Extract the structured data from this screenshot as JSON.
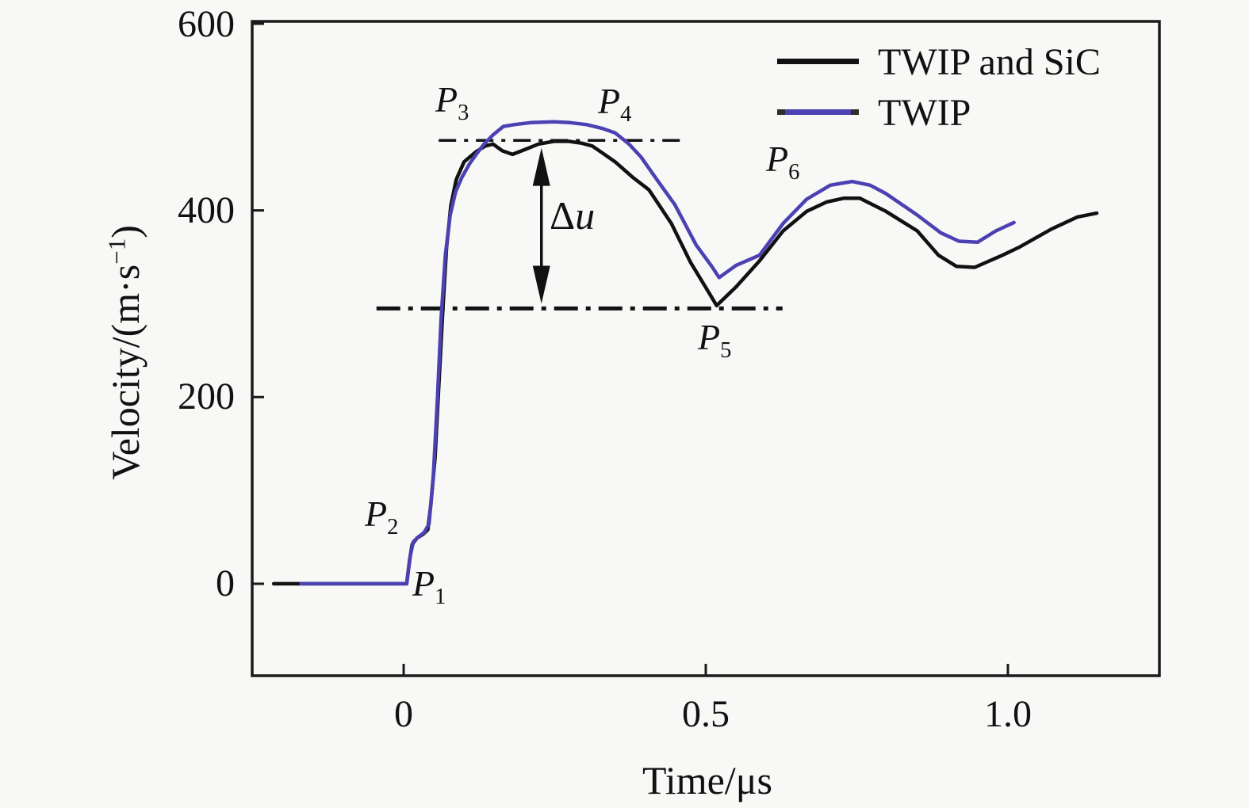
{
  "figure": {
    "background": "#f8f8f7",
    "axis_color": "#1a1a1a"
  },
  "axes": {
    "x": {
      "title": "Time/μs",
      "tick_labels": [
        "0",
        "0.5",
        "1.0"
      ]
    },
    "y": {
      "title_pre": "Velocity/(m·s",
      "title_sup": "−1",
      "title_post": ")",
      "tick_labels": [
        "600",
        "400",
        "200",
        "0"
      ]
    }
  },
  "legend": {
    "items": [
      {
        "label": "TWIP and SiC",
        "color": "#111111"
      },
      {
        "label": "TWIP",
        "color": "#4c41b3"
      }
    ]
  },
  "annotations": {
    "point_labels": [
      {
        "main": "P",
        "sub": "1"
      },
      {
        "main": "P",
        "sub": "2"
      },
      {
        "main": "P",
        "sub": "3"
      },
      {
        "main": "P",
        "sub": "4"
      },
      {
        "main": "P",
        "sub": "5"
      },
      {
        "main": "P",
        "sub": "6"
      }
    ],
    "delta": {
      "symbol": "Δ",
      "var": "u"
    },
    "reference_lines": [
      {
        "level": 475,
        "t_start": 0.058,
        "t_end": 0.463,
        "style": "dash-dot",
        "weight": "thin"
      },
      {
        "level": 295,
        "t_start": -0.045,
        "t_end": 0.627,
        "style": "dash-dot",
        "weight": "thick"
      }
    ],
    "arrow": {
      "t": 0.228,
      "v_from": 300,
      "v_to": 467
    }
  },
  "chart_data": {
    "type": "line",
    "title": "",
    "xlabel": "Time/μs",
    "ylabel": "Velocity/(m·s−1)",
    "xlim": [
      -0.2507,
      1.2507
    ],
    "ylim": [
      -98.5,
      602.5
    ],
    "x_ticks": [
      0,
      0.5,
      1.0
    ],
    "y_ticks": [
      0,
      200,
      400,
      600
    ],
    "grid": false,
    "legend_position": "upper right",
    "series": [
      {
        "name": "TWIP and SiC",
        "color": "#111111",
        "points": [
          [
            -0.215,
            0
          ],
          [
            -0.1,
            0
          ],
          [
            0.005,
            0
          ],
          [
            0.01,
            26
          ],
          [
            0.014,
            42
          ],
          [
            0.022,
            49
          ],
          [
            0.032,
            53
          ],
          [
            0.04,
            58
          ],
          [
            0.045,
            85
          ],
          [
            0.052,
            135
          ],
          [
            0.058,
            210
          ],
          [
            0.065,
            295
          ],
          [
            0.071,
            360
          ],
          [
            0.078,
            405
          ],
          [
            0.087,
            433
          ],
          [
            0.1,
            452
          ],
          [
            0.12,
            463
          ],
          [
            0.135,
            469
          ],
          [
            0.148,
            471
          ],
          [
            0.163,
            464
          ],
          [
            0.18,
            460
          ],
          [
            0.2,
            465
          ],
          [
            0.223,
            471
          ],
          [
            0.249,
            474
          ],
          [
            0.273,
            474
          ],
          [
            0.295,
            472
          ],
          [
            0.312,
            469
          ],
          [
            0.33,
            461
          ],
          [
            0.35,
            452
          ],
          [
            0.38,
            435
          ],
          [
            0.406,
            422
          ],
          [
            0.443,
            386
          ],
          [
            0.475,
            344
          ],
          [
            0.507,
            310
          ],
          [
            0.518,
            298
          ],
          [
            0.534,
            308
          ],
          [
            0.55,
            318
          ],
          [
            0.589,
            346
          ],
          [
            0.628,
            378
          ],
          [
            0.667,
            399
          ],
          [
            0.7,
            409
          ],
          [
            0.728,
            413
          ],
          [
            0.755,
            413
          ],
          [
            0.798,
            399
          ],
          [
            0.85,
            378
          ],
          [
            0.885,
            352
          ],
          [
            0.915,
            340
          ],
          [
            0.945,
            339
          ],
          [
            0.991,
            352
          ],
          [
            1.02,
            361
          ],
          [
            1.072,
            380
          ],
          [
            1.115,
            393
          ],
          [
            1.147,
            397
          ]
        ]
      },
      {
        "name": "TWIP",
        "color": "#4c41b3",
        "points": [
          [
            -0.17,
            0
          ],
          [
            0.005,
            0
          ],
          [
            0.011,
            30
          ],
          [
            0.016,
            45
          ],
          [
            0.024,
            50
          ],
          [
            0.034,
            55
          ],
          [
            0.042,
            64
          ],
          [
            0.049,
            115
          ],
          [
            0.056,
            200
          ],
          [
            0.062,
            285
          ],
          [
            0.069,
            352
          ],
          [
            0.077,
            395
          ],
          [
            0.086,
            420
          ],
          [
            0.096,
            435
          ],
          [
            0.109,
            450
          ],
          [
            0.12,
            460
          ],
          [
            0.133,
            471
          ],
          [
            0.148,
            481
          ],
          [
            0.165,
            490
          ],
          [
            0.184,
            492
          ],
          [
            0.21,
            494
          ],
          [
            0.249,
            495
          ],
          [
            0.275,
            494
          ],
          [
            0.302,
            492
          ],
          [
            0.328,
            488
          ],
          [
            0.35,
            483
          ],
          [
            0.373,
            471
          ],
          [
            0.393,
            457
          ],
          [
            0.419,
            433
          ],
          [
            0.449,
            406
          ],
          [
            0.484,
            363
          ],
          [
            0.51,
            340
          ],
          [
            0.522,
            328
          ],
          [
            0.537,
            335
          ],
          [
            0.55,
            341
          ],
          [
            0.589,
            352
          ],
          [
            0.628,
            386
          ],
          [
            0.667,
            412
          ],
          [
            0.706,
            427
          ],
          [
            0.742,
            431
          ],
          [
            0.772,
            427
          ],
          [
            0.798,
            418
          ],
          [
            0.85,
            395
          ],
          [
            0.889,
            376
          ],
          [
            0.919,
            367
          ],
          [
            0.95,
            366
          ],
          [
            0.98,
            378
          ],
          [
            1.01,
            387
          ]
        ]
      }
    ]
  }
}
